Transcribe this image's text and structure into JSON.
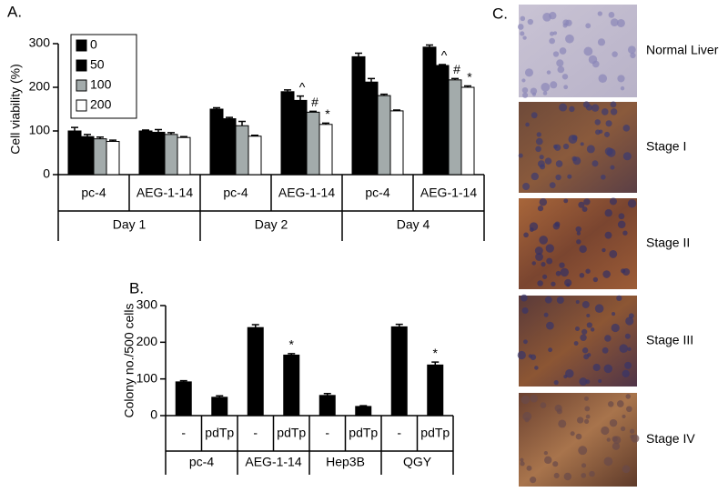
{
  "chart_data": [
    {
      "type": "bar",
      "title": "A.",
      "ylabel": "Cell viability (%)",
      "categories": [
        "pc-4",
        "AEG-1-14",
        "pc-4",
        "AEG-1-14",
        "pc-4",
        "AEG-1-14"
      ],
      "groups": [
        "Day 1",
        "Day 2",
        "Day 4"
      ],
      "series": [
        {
          "name": "0",
          "color": "#000000",
          "values": [
            100,
            100,
            150,
            190,
            270,
            292
          ],
          "errors": [
            8,
            2,
            3,
            4,
            8,
            5
          ],
          "annotations": [
            null,
            null,
            null,
            null,
            null,
            null
          ]
        },
        {
          "name": "50",
          "color": "#000000",
          "values": [
            87,
            97,
            128,
            170,
            212,
            250
          ],
          "errors": [
            5,
            6,
            3,
            10,
            8,
            2
          ],
          "annotations": [
            null,
            null,
            null,
            "^",
            null,
            "^"
          ]
        },
        {
          "name": "100",
          "color": "#a3abab",
          "values": [
            82,
            92,
            112,
            143,
            181,
            217
          ],
          "errors": [
            4,
            4,
            10,
            2,
            3,
            3
          ],
          "annotations": [
            null,
            null,
            null,
            "#",
            null,
            "#"
          ]
        },
        {
          "name": "200",
          "color": "#ffffff",
          "values": [
            76,
            85,
            88,
            115,
            146,
            200
          ],
          "errors": [
            3,
            2,
            2,
            3,
            2,
            3
          ],
          "annotations": [
            null,
            null,
            null,
            "*",
            null,
            "*"
          ]
        }
      ],
      "ylim": [
        0,
        300
      ],
      "yticks": [
        0,
        100,
        200,
        300
      ],
      "legend": "upper left"
    },
    {
      "type": "bar",
      "title": "B.",
      "ylabel": "Colony no./500 cells",
      "categories": [
        "-",
        "pdTp",
        "-",
        "pdTp",
        "-",
        "pdTp",
        "-",
        "pdTp"
      ],
      "groups": [
        "pc-4",
        "AEG-1-14",
        "Hep3B",
        "QGY"
      ],
      "color": "#000000",
      "values": [
        92,
        50,
        240,
        165,
        55,
        25,
        242,
        138
      ],
      "errors": [
        3,
        4,
        8,
        4,
        5,
        2,
        7,
        8
      ],
      "annotations": [
        null,
        null,
        null,
        "*",
        null,
        null,
        null,
        "*"
      ],
      "ylim": [
        0,
        300
      ],
      "yticks": [
        0,
        100,
        200,
        300
      ]
    }
  ],
  "panel_c": {
    "label": "C.",
    "images": [
      {
        "label": "Normal Liver"
      },
      {
        "label": "Stage I"
      },
      {
        "label": "Stage II"
      },
      {
        "label": "Stage III"
      },
      {
        "label": "Stage IV"
      }
    ]
  }
}
